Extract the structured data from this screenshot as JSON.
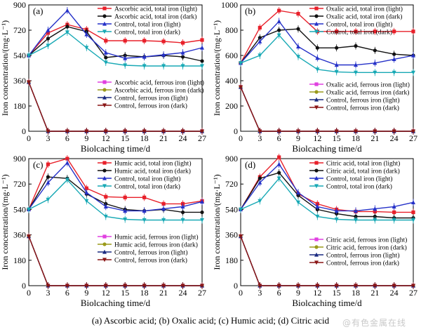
{
  "caption": "(a) Ascorbic acid; (b) Oxalic acid; (c) Humic acid; (d) Citric acid",
  "watermark": "@有色金属在线",
  "chart_data": [
    {
      "type": "line",
      "panel_label": "(a)",
      "xlabel": "Biolcaching time/d",
      "ylabel": "Iron concentration/(mg·L⁻¹)",
      "xlim": [
        0,
        27
      ],
      "ylim": [
        0,
        900
      ],
      "xticks": [
        0,
        3,
        6,
        9,
        12,
        15,
        18,
        21,
        24,
        27
      ],
      "yticks": [
        0,
        180,
        360,
        540,
        720,
        900
      ],
      "x": [
        0,
        3,
        6,
        9,
        12,
        15,
        18,
        21,
        24,
        27
      ],
      "series": [
        {
          "name": "Ascorbic acid, total iron (light)",
          "color": "#e8202a",
          "values": [
            540,
            700,
            760,
            725,
            645,
            645,
            645,
            640,
            630,
            650
          ]
        },
        {
          "name": "Ascorbic acid, total iron (dark)",
          "color": "#111111",
          "values": [
            540,
            660,
            745,
            710,
            525,
            540,
            530,
            540,
            530,
            500
          ]
        },
        {
          "name": "Control, total iron (light)",
          "color": "#2531c8",
          "values": [
            540,
            720,
            860,
            690,
            560,
            520,
            530,
            545,
            560,
            595
          ]
        },
        {
          "name": "Control, total iron (dark)",
          "color": "#18a9b5",
          "values": [
            540,
            610,
            705,
            595,
            490,
            470,
            465,
            465,
            465,
            465
          ]
        },
        {
          "name": "Ascorbic acid, ferrous iron (light)",
          "color": "#e040e0",
          "values": [
            350,
            0,
            0,
            0,
            0,
            0,
            0,
            0,
            0,
            0
          ]
        },
        {
          "name": "Ascorbic acid, ferrous iron (dark)",
          "color": "#9a9a1a",
          "values": [
            350,
            0,
            0,
            0,
            0,
            0,
            0,
            0,
            0,
            0
          ]
        },
        {
          "name": "Control, ferrous iron (light)",
          "color": "#1a2a80",
          "values": [
            350,
            0,
            0,
            0,
            0,
            0,
            0,
            0,
            0,
            0
          ]
        },
        {
          "name": "Control, ferrous iron (dark)",
          "color": "#8a1515",
          "values": [
            350,
            0,
            0,
            0,
            0,
            0,
            0,
            0,
            0,
            0
          ]
        }
      ]
    },
    {
      "type": "line",
      "panel_label": "(b)",
      "xlabel": "Biolcaching time/d",
      "ylabel": "Iron concentration/(mg·L⁻¹)",
      "xlim": [
        0,
        27
      ],
      "ylim": [
        0,
        1000
      ],
      "xticks": [
        0,
        3,
        6,
        9,
        12,
        15,
        18,
        21,
        24,
        27
      ],
      "yticks": [
        0,
        200,
        400,
        600,
        800,
        1000
      ],
      "x": [
        0,
        3,
        6,
        9,
        12,
        15,
        18,
        21,
        24,
        27
      ],
      "series": [
        {
          "name": "Oxalic acid, total iron (light)",
          "color": "#e8202a",
          "values": [
            540,
            820,
            955,
            930,
            790,
            790,
            790,
            790,
            790,
            790
          ]
        },
        {
          "name": "Oxalic acid, total iron (dark)",
          "color": "#111111",
          "values": [
            540,
            740,
            800,
            810,
            660,
            660,
            675,
            640,
            610,
            600
          ]
        },
        {
          "name": "Control, total iron (light)",
          "color": "#2531c8",
          "values": [
            540,
            710,
            870,
            670,
            580,
            525,
            525,
            540,
            570,
            600
          ]
        },
        {
          "name": "Control, total iron (dark)",
          "color": "#18a9b5",
          "values": [
            540,
            600,
            760,
            590,
            490,
            470,
            465,
            465,
            465,
            465
          ]
        },
        {
          "name": "Oxalic acid, ferrous iron (light)",
          "color": "#e040e0",
          "values": [
            350,
            0,
            0,
            0,
            0,
            0,
            0,
            0,
            0,
            0
          ]
        },
        {
          "name": "Oxalic acid, ferrous iron (dark)",
          "color": "#9a9a1a",
          "values": [
            350,
            0,
            0,
            0,
            0,
            0,
            0,
            0,
            0,
            0
          ]
        },
        {
          "name": "Control, ferrous iron (light)",
          "color": "#1a2a80",
          "values": [
            350,
            0,
            0,
            0,
            0,
            0,
            0,
            0,
            0,
            0
          ]
        },
        {
          "name": "Control, ferrous iron (dark)",
          "color": "#8a1515",
          "values": [
            350,
            0,
            0,
            0,
            0,
            0,
            0,
            0,
            0,
            0
          ]
        }
      ]
    },
    {
      "type": "line",
      "panel_label": "(c)",
      "xlabel": "Biolcaching time/d",
      "ylabel": "Iron concentration/(mg·L⁻¹)",
      "xlim": [
        0,
        27
      ],
      "ylim": [
        0,
        900
      ],
      "xticks": [
        0,
        3,
        6,
        9,
        12,
        15,
        18,
        21,
        24,
        27
      ],
      "yticks": [
        0,
        180,
        360,
        540,
        720,
        900
      ],
      "x": [
        0,
        3,
        6,
        9,
        12,
        15,
        18,
        21,
        24,
        27
      ],
      "series": [
        {
          "name": "Humic acid, total iron (light)",
          "color": "#e8202a",
          "values": [
            540,
            860,
            900,
            690,
            630,
            625,
            625,
            580,
            580,
            600
          ]
        },
        {
          "name": "Humic acid, total iron (dark)",
          "color": "#111111",
          "values": [
            540,
            770,
            760,
            650,
            580,
            540,
            530,
            540,
            520,
            520
          ]
        },
        {
          "name": "Control, total iron (light)",
          "color": "#2531c8",
          "values": [
            540,
            730,
            870,
            660,
            560,
            530,
            530,
            545,
            560,
            595
          ]
        },
        {
          "name": "Control, total iron (dark)",
          "color": "#18a9b5",
          "values": [
            540,
            610,
            750,
            600,
            490,
            470,
            465,
            465,
            465,
            465
          ]
        },
        {
          "name": "Humic acid, ferrous iron (light)",
          "color": "#e040e0",
          "values": [
            350,
            0,
            0,
            0,
            0,
            0,
            0,
            0,
            0,
            0
          ]
        },
        {
          "name": "Humic acid, ferrous iron (dark)",
          "color": "#9a9a1a",
          "values": [
            350,
            0,
            0,
            0,
            0,
            0,
            0,
            0,
            0,
            0
          ]
        },
        {
          "name": "Control, ferrous iron (light)",
          "color": "#1a2a80",
          "values": [
            350,
            0,
            0,
            0,
            0,
            0,
            0,
            0,
            0,
            0
          ]
        },
        {
          "name": "Control, ferrous iron (dark)",
          "color": "#8a1515",
          "values": [
            350,
            0,
            0,
            0,
            0,
            0,
            0,
            0,
            0,
            0
          ]
        }
      ]
    },
    {
      "type": "line",
      "panel_label": "(d)",
      "xlabel": "Biolcaching time/d",
      "ylabel": "Iron concentration/(mg·L⁻¹)",
      "xlim": [
        0,
        27
      ],
      "ylim": [
        0,
        900
      ],
      "xticks": [
        0,
        3,
        6,
        9,
        12,
        15,
        18,
        21,
        24,
        27
      ],
      "yticks": [
        0,
        180,
        360,
        540,
        720,
        900
      ],
      "x": [
        0,
        3,
        6,
        9,
        12,
        15,
        18,
        21,
        24,
        27
      ],
      "series": [
        {
          "name": "Citric acid, total iron (light)",
          "color": "#e8202a",
          "values": [
            540,
            770,
            910,
            650,
            580,
            540,
            525,
            525,
            520,
            520
          ]
        },
        {
          "name": "Citric acid, total iron (dark)",
          "color": "#111111",
          "values": [
            540,
            760,
            800,
            640,
            540,
            510,
            490,
            490,
            480,
            480
          ]
        },
        {
          "name": "Control, total iron (light)",
          "color": "#2531c8",
          "values": [
            540,
            730,
            860,
            660,
            560,
            530,
            530,
            545,
            560,
            590
          ]
        },
        {
          "name": "Control, total iron (dark)",
          "color": "#18a9b5",
          "values": [
            540,
            600,
            760,
            590,
            490,
            470,
            465,
            465,
            465,
            465
          ]
        },
        {
          "name": "Citric acid, ferrous iron (light)",
          "color": "#e040e0",
          "values": [
            350,
            0,
            0,
            0,
            0,
            0,
            0,
            0,
            0,
            0
          ]
        },
        {
          "name": "Citric acid, ferrous iron (dark)",
          "color": "#9a9a1a",
          "values": [
            350,
            0,
            0,
            0,
            0,
            0,
            0,
            0,
            0,
            0
          ]
        },
        {
          "name": "Control, ferrous iron (light)",
          "color": "#1a2a80",
          "values": [
            350,
            0,
            0,
            0,
            0,
            0,
            0,
            0,
            0,
            0
          ]
        },
        {
          "name": "Control, ferrous iron (dark)",
          "color": "#8a1515",
          "values": [
            350,
            0,
            0,
            0,
            0,
            0,
            0,
            0,
            0,
            0
          ]
        }
      ]
    }
  ]
}
